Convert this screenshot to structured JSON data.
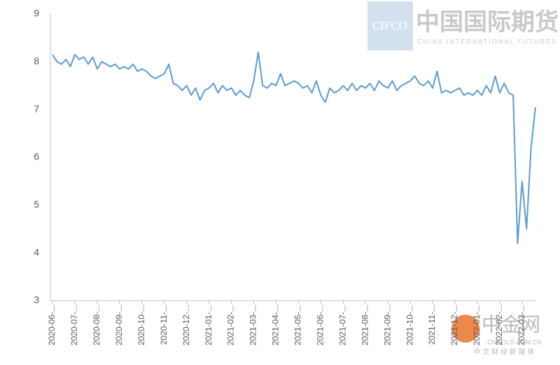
{
  "chart_data": {
    "type": "line",
    "categories": [
      "2020-06-...",
      null,
      null,
      null,
      null,
      "2020-07-...",
      null,
      null,
      null,
      null,
      "2020-08-...",
      null,
      null,
      null,
      null,
      "2020-09-...",
      null,
      null,
      null,
      null,
      "2020-10-...",
      null,
      null,
      null,
      null,
      "2020-11-...",
      null,
      null,
      null,
      null,
      "2020-12-...",
      null,
      null,
      null,
      null,
      "2021-01-...",
      null,
      null,
      null,
      null,
      "2021-02-...",
      null,
      null,
      null,
      null,
      "2021-03-...",
      null,
      null,
      null,
      null,
      "2021-04-...",
      null,
      null,
      null,
      null,
      "2021-05-...",
      null,
      null,
      null,
      null,
      "2021-06-...",
      null,
      null,
      null,
      null,
      "2021-07-...",
      null,
      null,
      null,
      null,
      "2021-08-...",
      null,
      null,
      null,
      null,
      "2021-09-...",
      null,
      null,
      null,
      null,
      "2021-10-...",
      null,
      null,
      null,
      null,
      "2021-11-...",
      null,
      null,
      null,
      null,
      "2021-12-...",
      null,
      null,
      null,
      null,
      "2022-01-...",
      null,
      null,
      null,
      null,
      "2022-02-...",
      null,
      null,
      null,
      null,
      "2022-03-...",
      null,
      null,
      null
    ],
    "series": [
      {
        "color": "#5b9bd5",
        "values": [
          8.15,
          8.0,
          7.95,
          8.05,
          7.9,
          8.15,
          8.05,
          8.1,
          7.95,
          8.1,
          7.85,
          8.0,
          7.95,
          7.9,
          7.95,
          7.85,
          7.9,
          7.85,
          7.95,
          7.8,
          7.85,
          7.8,
          7.7,
          7.65,
          7.7,
          7.75,
          7.95,
          7.55,
          7.5,
          7.4,
          7.5,
          7.3,
          7.45,
          7.2,
          7.4,
          7.45,
          7.55,
          7.35,
          7.5,
          7.4,
          7.45,
          7.3,
          7.4,
          7.3,
          7.25,
          7.6,
          8.2,
          7.5,
          7.45,
          7.55,
          7.5,
          7.75,
          7.5,
          7.55,
          7.6,
          7.55,
          7.45,
          7.5,
          7.35,
          7.6,
          7.3,
          7.15,
          7.45,
          7.35,
          7.4,
          7.5,
          7.4,
          7.55,
          7.4,
          7.5,
          7.45,
          7.55,
          7.4,
          7.6,
          7.5,
          7.45,
          7.6,
          7.4,
          7.5,
          7.55,
          7.6,
          7.7,
          7.55,
          7.5,
          7.6,
          7.45,
          7.8,
          7.35,
          7.4,
          7.35,
          7.4,
          7.45,
          7.3,
          7.35,
          7.3,
          7.4,
          7.3,
          7.5,
          7.35,
          7.7,
          7.35,
          7.55,
          7.35,
          7.3,
          4.2,
          5.5,
          4.5,
          6.2,
          7.05
        ]
      }
    ],
    "ylim": [
      3,
      9
    ],
    "yticks": [
      3,
      4,
      5,
      6,
      7,
      8,
      9
    ],
    "grid": false,
    "annotations": [
      "CIFCO",
      "中国国际期货",
      "CHINA INTERNATIONAL FUTURES",
      "中金网",
      "CNGOLD.COM.CN",
      "中 文 财 经 新 媒 体"
    ]
  }
}
